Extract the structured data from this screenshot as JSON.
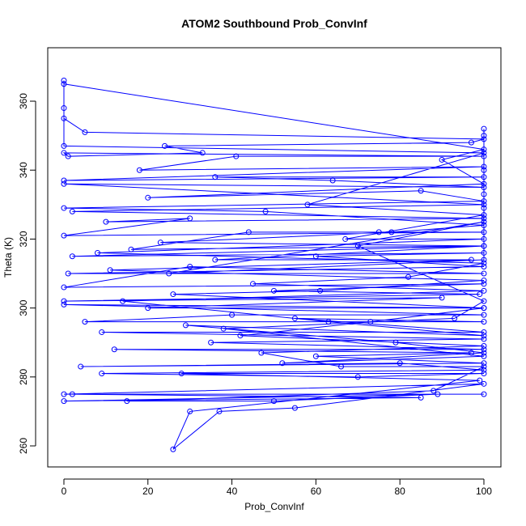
{
  "chart_data": {
    "type": "scatter",
    "lines": true,
    "title": "ATOM2 Southbound Prob_ConvInf",
    "x_label": "Prob_ConvInf",
    "y_label": "Theta (K)",
    "color": "#0000ff",
    "xlim": [
      -3.85,
      104.05
    ],
    "ylim": [
      253.9,
      375.5
    ],
    "xticks": [
      0,
      20,
      40,
      60,
      80,
      100
    ],
    "yticks": [
      260,
      280,
      300,
      320,
      340,
      360
    ],
    "x": [
      0,
      0,
      0,
      5,
      100,
      97,
      24,
      33,
      1,
      0,
      100,
      41,
      18,
      100,
      0,
      100,
      36,
      64,
      100,
      0,
      100,
      2,
      100,
      10,
      30,
      0,
      100,
      75,
      44,
      16,
      100,
      2,
      100,
      60,
      100,
      1,
      100,
      30,
      0,
      100,
      50,
      99,
      0,
      90,
      20,
      100,
      0,
      100,
      40,
      5,
      100,
      55,
      100,
      9,
      100,
      35,
      100,
      12,
      97,
      60,
      100,
      4,
      80,
      100,
      9,
      70,
      100,
      28,
      99,
      30,
      26,
      37,
      55,
      100,
      0,
      100,
      2,
      85,
      0,
      89,
      50,
      15,
      88,
      100,
      66,
      47,
      100,
      42,
      73,
      100,
      26,
      61,
      100,
      11,
      97,
      36,
      100,
      23,
      78,
      100,
      48,
      0,
      100,
      85,
      20,
      100,
      90,
      100,
      0,
      0,
      100,
      58,
      100,
      67,
      100,
      8,
      100,
      82,
      45,
      100,
      14,
      63,
      100,
      29,
      79,
      100,
      52,
      100,
      38,
      93,
      100,
      70,
      100,
      25,
      100,
      100,
      100,
      100,
      100,
      100
    ],
    "y": [
      366,
      358,
      355,
      351,
      349,
      348,
      347,
      345,
      344,
      345,
      344,
      344,
      340,
      341,
      337,
      338,
      338,
      337,
      335,
      336,
      330,
      328,
      326,
      325,
      326,
      321,
      322,
      322,
      322,
      317,
      318,
      315,
      316,
      315,
      312,
      310,
      310,
      312,
      306,
      307,
      305,
      304,
      302,
      303,
      300,
      300,
      301,
      298,
      298,
      296,
      296,
      297,
      293,
      293,
      291,
      290,
      288,
      288,
      287,
      286,
      284,
      283,
      284,
      282,
      281,
      280,
      281,
      281,
      279,
      270,
      259,
      270,
      271,
      278,
      275,
      275,
      275,
      274,
      273,
      275,
      273,
      273,
      276,
      283,
      283,
      287,
      289,
      292,
      296,
      300,
      304,
      305,
      308,
      311,
      314,
      314,
      318,
      319,
      322,
      324,
      328,
      329,
      331,
      334,
      332,
      336,
      343,
      346,
      365,
      347,
      345,
      330,
      327,
      320,
      320,
      316,
      313,
      309,
      307,
      305,
      302,
      296,
      292,
      295,
      290,
      287,
      284,
      286,
      294,
      297,
      302,
      318,
      325,
      310,
      314,
      350,
      352,
      340,
      333,
      329
    ]
  }
}
